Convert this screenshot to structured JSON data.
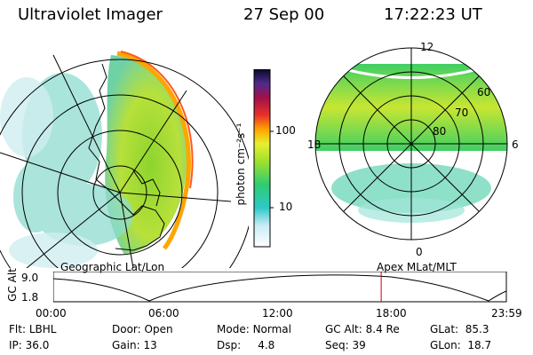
{
  "header": {
    "instrument": "Ultraviolet Imager",
    "date": "27 Sep 00",
    "time": "17:22:23 UT"
  },
  "left_panel": {
    "label": "Geographic Lat/Lon"
  },
  "right_panel": {
    "label": "Apex MLat/MLT",
    "lat_labels": [
      "60",
      "70",
      "80"
    ],
    "mlt_labels": [
      "12",
      "18",
      "6",
      "0"
    ]
  },
  "colorbar": {
    "unit": "photon cm⁻²s⁻¹",
    "tick_labels": [
      "100",
      "10"
    ]
  },
  "timeline": {
    "y_axis_label": "GC Alt",
    "y_tick_labels": [
      "9.0",
      "1.8"
    ],
    "x_tick_labels": [
      "00:00",
      "06:00",
      "12:00",
      "18:00",
      "23:59"
    ],
    "current_time_hours": 17.37
  },
  "stats": {
    "row1": [
      {
        "label": "Flt:",
        "value": "LBHL"
      },
      {
        "label": "Door:",
        "value": "Open"
      },
      {
        "label": "Mode:",
        "value": "Normal"
      },
      {
        "label": "GC Alt:",
        "value": "8.4 Re"
      },
      {
        "label": "GLat:",
        "value": "85.3"
      }
    ],
    "row2": [
      {
        "label": "IP:",
        "value": "36.0"
      },
      {
        "label": "Gain:",
        "value": "13"
      },
      {
        "label": "Dsp:",
        "value": "4.8"
      },
      {
        "label": "Seq:",
        "value": "39"
      },
      {
        "label": "GLon:",
        "value": "18.7"
      }
    ]
  },
  "colors": {
    "aurora_bright": "#ffa500",
    "aurora_mid": "#c8e632",
    "aurora_low": "#5fd3b0",
    "background": "#ffffff",
    "time_marker": "#cc0000"
  }
}
